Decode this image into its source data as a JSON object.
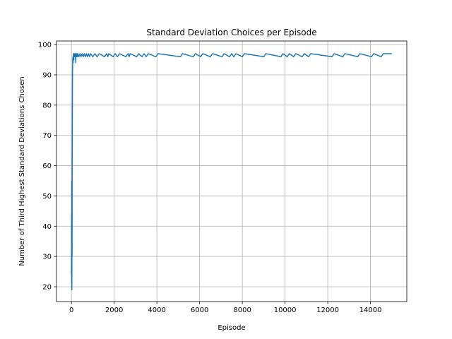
{
  "chart_data": {
    "type": "line",
    "title": "Standard Deviation Choices per Episode",
    "xlabel": "Episode",
    "ylabel": "Number of Third Highest Standard Deviations Chosen",
    "xlim": [
      -700,
      15700
    ],
    "ylim": [
      15.1,
      101.2
    ],
    "x_ticks": [
      0,
      2000,
      4000,
      6000,
      8000,
      10000,
      12000,
      14000
    ],
    "y_ticks": [
      20,
      30,
      40,
      50,
      60,
      70,
      80,
      90,
      100
    ],
    "x_tick_labels": [
      "0",
      "2000",
      "4000",
      "6000",
      "8000",
      "10000",
      "12000",
      "14000"
    ],
    "y_tick_labels": [
      "20",
      "30",
      "40",
      "50",
      "60",
      "70",
      "80",
      "90",
      "100"
    ],
    "grid": true,
    "legend": "none",
    "series": [
      {
        "color": "#1f77b4",
        "points": [
          [
            0,
            24
          ],
          [
            5,
            44
          ],
          [
            10,
            21
          ],
          [
            15,
            55
          ],
          [
            20,
            19
          ],
          [
            25,
            38
          ],
          [
            30,
            30
          ],
          [
            35,
            60
          ],
          [
            40,
            72
          ],
          [
            45,
            84
          ],
          [
            50,
            91
          ],
          [
            55,
            93
          ],
          [
            60,
            95
          ],
          [
            70,
            96
          ],
          [
            80,
            94
          ],
          [
            90,
            97
          ],
          [
            100,
            97
          ],
          [
            110,
            95
          ],
          [
            120,
            97
          ],
          [
            130,
            96
          ],
          [
            150,
            97
          ],
          [
            170,
            96
          ],
          [
            190,
            97
          ],
          [
            200,
            94
          ],
          [
            210,
            97
          ],
          [
            230,
            96
          ],
          [
            250,
            97
          ],
          [
            280,
            96
          ],
          [
            300,
            97
          ],
          [
            350,
            96
          ],
          [
            400,
            97
          ],
          [
            450,
            96
          ],
          [
            500,
            97
          ],
          [
            550,
            96
          ],
          [
            600,
            97
          ],
          [
            650,
            96
          ],
          [
            700,
            97
          ],
          [
            750,
            96
          ],
          [
            800,
            97
          ],
          [
            850,
            96
          ],
          [
            900,
            97
          ],
          [
            1000,
            96
          ],
          [
            1100,
            97
          ],
          [
            1200,
            96
          ],
          [
            1300,
            97
          ],
          [
            1550,
            96
          ],
          [
            1650,
            97
          ],
          [
            1700,
            96
          ],
          [
            1750,
            97
          ],
          [
            1950,
            96
          ],
          [
            2050,
            97
          ],
          [
            2150,
            96
          ],
          [
            2250,
            97
          ],
          [
            2550,
            96
          ],
          [
            2650,
            97
          ],
          [
            2700,
            96
          ],
          [
            2750,
            97
          ],
          [
            3050,
            96
          ],
          [
            3150,
            97
          ],
          [
            3300,
            96
          ],
          [
            3400,
            97
          ],
          [
            3500,
            96
          ],
          [
            3600,
            97
          ],
          [
            3950,
            96
          ],
          [
            4050,
            97
          ],
          [
            5100,
            96
          ],
          [
            5200,
            97
          ],
          [
            5700,
            96
          ],
          [
            5800,
            97
          ],
          [
            6050,
            96
          ],
          [
            6150,
            97
          ],
          [
            6500,
            96
          ],
          [
            6600,
            97
          ],
          [
            7050,
            96
          ],
          [
            7150,
            97
          ],
          [
            7400,
            96
          ],
          [
            7500,
            97
          ],
          [
            7600,
            96
          ],
          [
            7700,
            97
          ],
          [
            8000,
            96
          ],
          [
            8100,
            97
          ],
          [
            9000,
            96
          ],
          [
            9100,
            97
          ],
          [
            9800,
            96
          ],
          [
            9900,
            97
          ],
          [
            10100,
            96
          ],
          [
            10200,
            97
          ],
          [
            10400,
            96
          ],
          [
            10500,
            97
          ],
          [
            10800,
            96
          ],
          [
            10900,
            97
          ],
          [
            11100,
            96
          ],
          [
            11200,
            97
          ],
          [
            12200,
            96
          ],
          [
            12300,
            97
          ],
          [
            12700,
            96
          ],
          [
            12800,
            97
          ],
          [
            13400,
            96
          ],
          [
            13500,
            97
          ],
          [
            14050,
            96
          ],
          [
            14150,
            97
          ],
          [
            14500,
            96
          ],
          [
            14600,
            97
          ],
          [
            15000,
            97
          ]
        ]
      }
    ]
  }
}
